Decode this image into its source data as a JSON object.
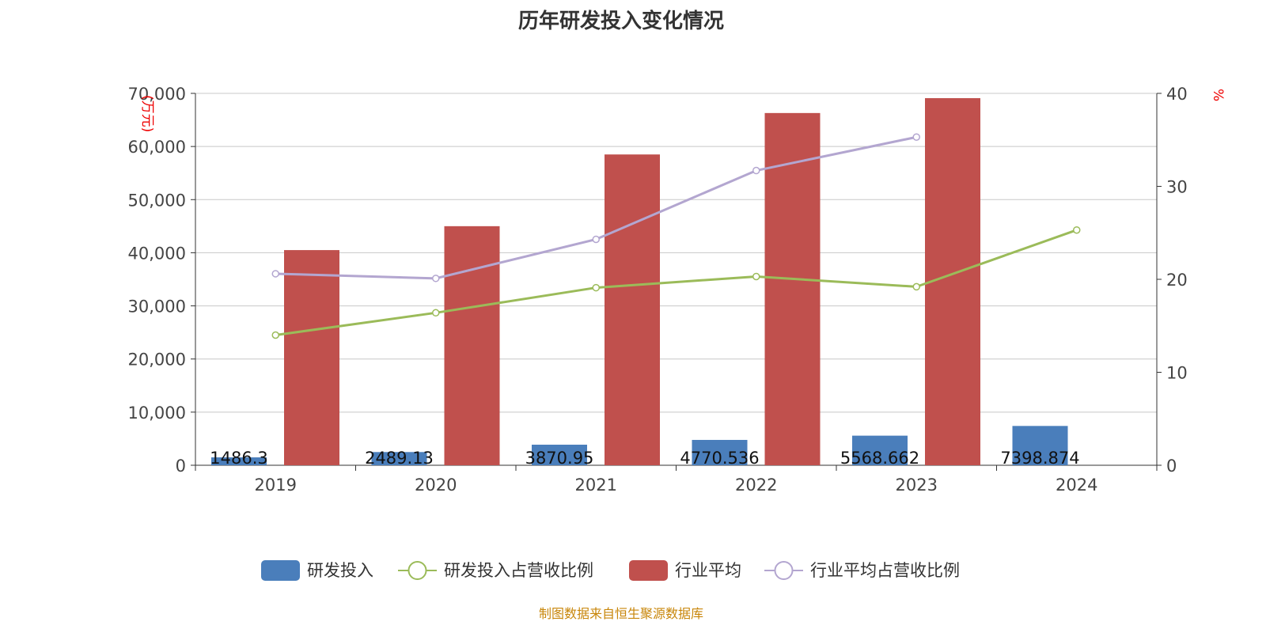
{
  "chart_data": {
    "type": "bar",
    "title": "历年研发投入变化情况",
    "categories": [
      "2019",
      "2020",
      "2021",
      "2022",
      "2023",
      "2024"
    ],
    "y_left": {
      "label": "(万元)",
      "range": [
        0,
        70000
      ],
      "ticks": [
        "0",
        "10,000",
        "20,000",
        "30,000",
        "40,000",
        "50,000",
        "60,000",
        "70,000"
      ]
    },
    "y_right": {
      "label": "%",
      "range": [
        0,
        40
      ],
      "ticks": [
        "0",
        "10",
        "20",
        "30",
        "40"
      ]
    },
    "grid": true,
    "legend_position": "bottom",
    "series": [
      {
        "name": "研发投入",
        "type": "bar",
        "axis": "left",
        "color": "#4a7ebb",
        "values": [
          1486.3,
          2489.13,
          3870.95,
          4770.536,
          5568.662,
          7398.874
        ],
        "labels": [
          "1486.3",
          "2489.13",
          "3870.95",
          "4770.536",
          "5568.662",
          "7398.874"
        ]
      },
      {
        "name": "研发投入占营收比例",
        "type": "line",
        "axis": "right",
        "color": "#9bbb59",
        "values": [
          14.0,
          16.4,
          19.1,
          20.3,
          19.2,
          25.3
        ]
      },
      {
        "name": "行业平均",
        "type": "bar",
        "axis": "left",
        "color": "#c0504d",
        "values": [
          40500,
          45000,
          58500,
          66300,
          69100,
          null
        ]
      },
      {
        "name": "行业平均占营收比例",
        "type": "line",
        "axis": "right",
        "color": "#b3a6d0",
        "values": [
          20.6,
          20.1,
          24.3,
          31.7,
          35.3,
          null
        ]
      }
    ]
  },
  "source": "制图数据来自恒生聚源数据库"
}
